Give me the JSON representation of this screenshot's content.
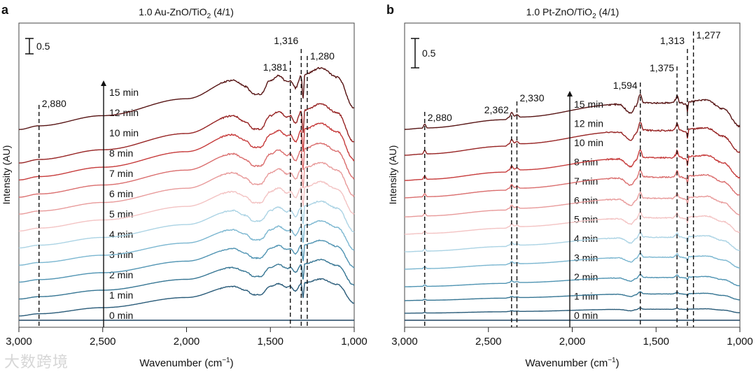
{
  "watermark": "大数跨境",
  "chart_data": [
    {
      "type": "line",
      "panel_letter": "a",
      "title_main": "1.0 Au-ZnO/TiO",
      "title_sub": "2",
      "title_tail": " (4/1)",
      "xlabel": "Wavenumber (cm",
      "xlabel_sup": "−1",
      "xlabel_tail": ")",
      "ylabel": "Intensity (AU)",
      "xlim": [
        3000,
        1000
      ],
      "xticks": [
        3000,
        2500,
        2000,
        1500,
        1000
      ],
      "xtick_labels": [
        "3,000",
        "2,500",
        "2,000",
        "1,500",
        "1,000"
      ],
      "scale_bar_label": "0.5",
      "scale_bar_value": 0.5,
      "marked_peaks": [
        {
          "x": 2880,
          "label": "2,880",
          "side": "right"
        },
        {
          "x": 1381,
          "label": "1,381",
          "side": "left"
        },
        {
          "x": 1316,
          "label": "1,316",
          "side": "left"
        },
        {
          "x": 1280,
          "label": "1,280",
          "side": "right"
        }
      ],
      "shape": {
        "x": [
          3000,
          2880,
          2500,
          2000,
          1720,
          1650,
          1600,
          1560,
          1500,
          1450,
          1400,
          1381,
          1350,
          1316,
          1305,
          1295,
          1200,
          1100,
          1000
        ],
        "y": [
          0,
          0.12,
          0.45,
          1.0,
          1.6,
          1.4,
          1.15,
          1.15,
          1.6,
          1.75,
          1.55,
          1.6,
          1.35,
          1.75,
          1.0,
          1.8,
          2.0,
          1.7,
          0.7
        ]
      },
      "series": [
        {
          "name": "0 min",
          "offset": 0,
          "scale": 0,
          "color": "#1d4460"
        },
        {
          "name": "1 min",
          "offset": 0.14,
          "scale": 0.6,
          "color": "#285a78"
        },
        {
          "name": "2 min",
          "offset": 0.69,
          "scale": 0.64,
          "color": "#357593"
        },
        {
          "name": "3 min",
          "offset": 1.24,
          "scale": 0.68,
          "color": "#4f93b2"
        },
        {
          "name": "4 min",
          "offset": 1.79,
          "scale": 0.72,
          "color": "#7ab6d0"
        },
        {
          "name": "5 min",
          "offset": 2.35,
          "scale": 0.76,
          "color": "#abd3e4"
        },
        {
          "name": "6 min",
          "offset": 2.9,
          "scale": 0.8,
          "color": "#f3c3c3"
        },
        {
          "name": "7 min",
          "offset": 3.45,
          "scale": 0.84,
          "color": "#e89a9a"
        },
        {
          "name": "8 min",
          "offset": 4.0,
          "scale": 0.88,
          "color": "#da6d6d"
        },
        {
          "name": "10 min",
          "offset": 4.56,
          "scale": 0.92,
          "color": "#c63a3a"
        },
        {
          "name": "12 min",
          "offset": 5.11,
          "scale": 0.96,
          "color": "#962222"
        },
        {
          "name": "15 min",
          "offset": 6.2,
          "scale": 1.0,
          "color": "#561313"
        }
      ]
    },
    {
      "type": "line",
      "panel_letter": "b",
      "title_main": "1.0 Pt-ZnO/TiO",
      "title_sub": "2",
      "title_tail": " (4/1)",
      "xlabel": "Wavenumber (cm",
      "xlabel_sup": "−1",
      "xlabel_tail": ")",
      "ylabel": "Intensity (AU)",
      "xlim": [
        3000,
        1000
      ],
      "xticks": [
        3000,
        2500,
        2000,
        1500,
        1000
      ],
      "xtick_labels": [
        "3,000",
        "2,500",
        "2,000",
        "1,500",
        "1,000"
      ],
      "scale_bar_label": "0.5",
      "scale_bar_value": 0.5,
      "marked_peaks": [
        {
          "x": 2880,
          "label": "2,880",
          "side": "right"
        },
        {
          "x": 2362,
          "label": "2,362",
          "side": "left"
        },
        {
          "x": 2330,
          "label": "2,330",
          "side": "right"
        },
        {
          "x": 1594,
          "label": "1,594",
          "side": "left"
        },
        {
          "x": 1375,
          "label": "1,375",
          "side": "left"
        },
        {
          "x": 1313,
          "label": "1,313",
          "side": "left"
        },
        {
          "x": 1277,
          "label": "1,277",
          "side": "right"
        }
      ],
      "shape": {
        "x": [
          3000,
          2895,
          2880,
          2865,
          2400,
          2375,
          2362,
          2345,
          2330,
          2310,
          1720,
          1650,
          1620,
          1594,
          1575,
          1500,
          1400,
          1385,
          1375,
          1360,
          1320,
          1313,
          1305,
          1200,
          1100,
          1000
        ],
        "y": [
          0,
          0.04,
          0.18,
          0.05,
          0.33,
          0.42,
          0.58,
          0.45,
          0.5,
          0.42,
          0.85,
          0.55,
          0.8,
          1.2,
          0.92,
          0.9,
          0.9,
          1.0,
          1.18,
          0.92,
          0.85,
          0.6,
          0.95,
          1.0,
          0.7,
          0.1
        ]
      },
      "series": [
        {
          "name": "0 min",
          "offset": 0,
          "scale": 0,
          "color": "#1d4460"
        },
        {
          "name": "1 min",
          "offset": 0.24,
          "scale": 0.15,
          "color": "#285a78"
        },
        {
          "name": "2 min",
          "offset": 0.67,
          "scale": 0.25,
          "color": "#357593"
        },
        {
          "name": "3 min",
          "offset": 1.14,
          "scale": 0.35,
          "color": "#4f93b2"
        },
        {
          "name": "4 min",
          "offset": 1.74,
          "scale": 0.45,
          "color": "#7ab6d0"
        },
        {
          "name": "5 min",
          "offset": 2.33,
          "scale": 0.55,
          "color": "#abd3e4"
        },
        {
          "name": "6 min",
          "offset": 2.93,
          "scale": 0.62,
          "color": "#f3c3c3"
        },
        {
          "name": "7 min",
          "offset": 3.52,
          "scale": 0.7,
          "color": "#e89a9a"
        },
        {
          "name": "8 min",
          "offset": 4.17,
          "scale": 0.78,
          "color": "#da6d6d"
        },
        {
          "name": "10 min",
          "offset": 4.76,
          "scale": 0.86,
          "color": "#c63a3a"
        },
        {
          "name": "12 min",
          "offset": 5.62,
          "scale": 0.93,
          "color": "#962222"
        },
        {
          "name": "15 min",
          "offset": 6.5,
          "scale": 1.0,
          "color": "#561313"
        }
      ]
    }
  ]
}
